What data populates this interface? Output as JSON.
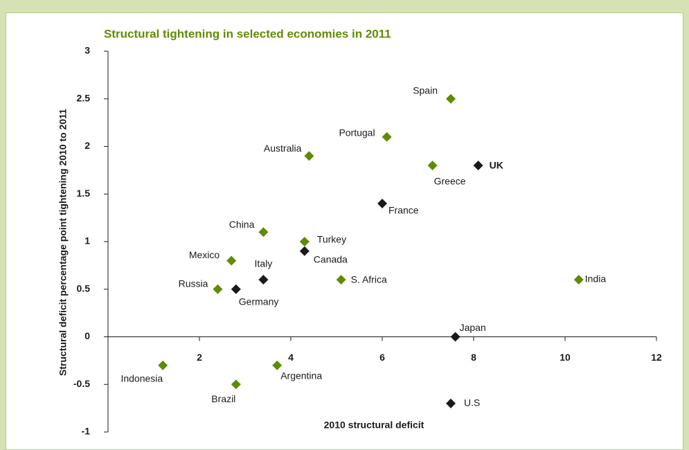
{
  "chart_data": {
    "type": "scatter",
    "title": "Structural tightening in selected economies in 2011",
    "xlabel": "2010 structural deficit",
    "ylabel": "Structural deficit percentage point tightening 2010 to 2011",
    "labels": [
      "Indonesia",
      "Brazil",
      "Argentina",
      "Russia",
      "Germany",
      "Mexico",
      "Italy",
      "China",
      "Turkey",
      "Canada",
      "S. Africa",
      "Australia",
      "Portugal",
      "Spain",
      "Greece",
      "UK",
      "France",
      "India",
      "Japan",
      "U.S"
    ],
    "x": [
      1.2,
      2.8,
      3.7,
      2.4,
      2.8,
      2.7,
      3.4,
      3.4,
      4.3,
      4.3,
      5.1,
      4.4,
      6.1,
      7.5,
      7.1,
      8.1,
      6.0,
      10.3,
      7.6,
      7.5
    ],
    "values": [
      -0.3,
      -0.5,
      -0.3,
      0.5,
      0.5,
      0.8,
      0.6,
      1.1,
      1.0,
      0.9,
      0.6,
      1.9,
      2.1,
      2.5,
      1.8,
      1.8,
      1.4,
      0.6,
      0.0,
      -0.7
    ],
    "colors": [
      "#5f8c00",
      "#5f8c00",
      "#5f8c00",
      "#5f8c00",
      "#1a1a1a",
      "#5f8c00",
      "#1a1a1a",
      "#5f8c00",
      "#5f8c00",
      "#1a1a1a",
      "#5f8c00",
      "#5f8c00",
      "#5f8c00",
      "#5f8c00",
      "#5f8c00",
      "#1a1a1a",
      "#1a1a1a",
      "#5f8c00",
      "#1a1a1a",
      "#1a1a1a"
    ],
    "xlim": [
      0,
      12
    ],
    "xticks": [
      2,
      4,
      6,
      8,
      10,
      12
    ],
    "ylim": [
      -1,
      3
    ],
    "yticks": [
      -1,
      -0.5,
      0,
      0.5,
      1,
      1.5,
      2,
      2.5,
      3
    ]
  }
}
